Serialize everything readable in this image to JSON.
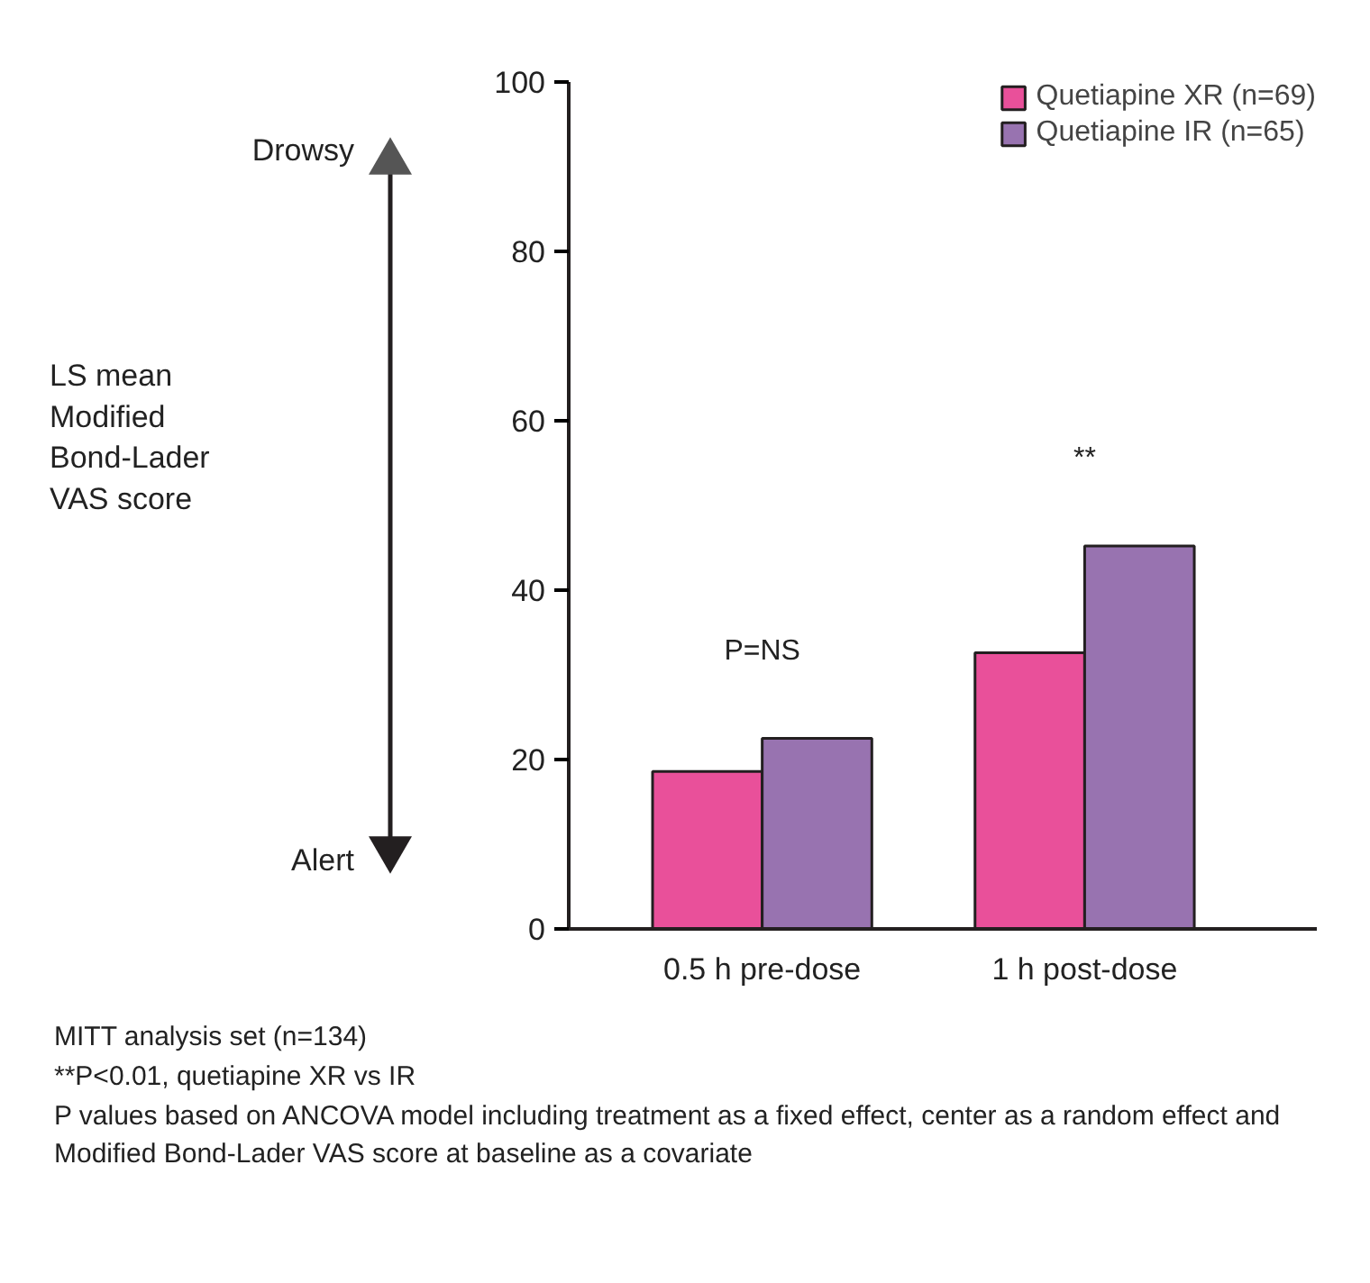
{
  "chart_data": {
    "type": "bar",
    "categories": [
      "0.5 h pre-dose",
      "1 h post-dose"
    ],
    "series": [
      {
        "name": "Quetiapine XR (n=69)",
        "color": "#e9509a",
        "values": [
          18.6,
          32.6
        ]
      },
      {
        "name": "Quetiapine IR (n=65)",
        "color": "#9873b0",
        "values": [
          22.5,
          45.2
        ]
      }
    ],
    "ylim": [
      0,
      100
    ],
    "yticks": [
      0,
      20,
      40,
      60,
      80,
      100
    ],
    "grid": false,
    "legend": "top right",
    "annotations": [
      "P=NS",
      "**",
      "Drowsy",
      "Alert",
      "LS mean\nModified\nBond-Lader\nVAS score",
      "MITT analysis set (n=134)",
      "**P<0.01, quetiapine XR vs IR",
      "P values based on ANCOVA model including treatment as a fixed effect, center as a random effect and Modified Bond-Lader VAS score at baseline as a covariate"
    ]
  }
}
